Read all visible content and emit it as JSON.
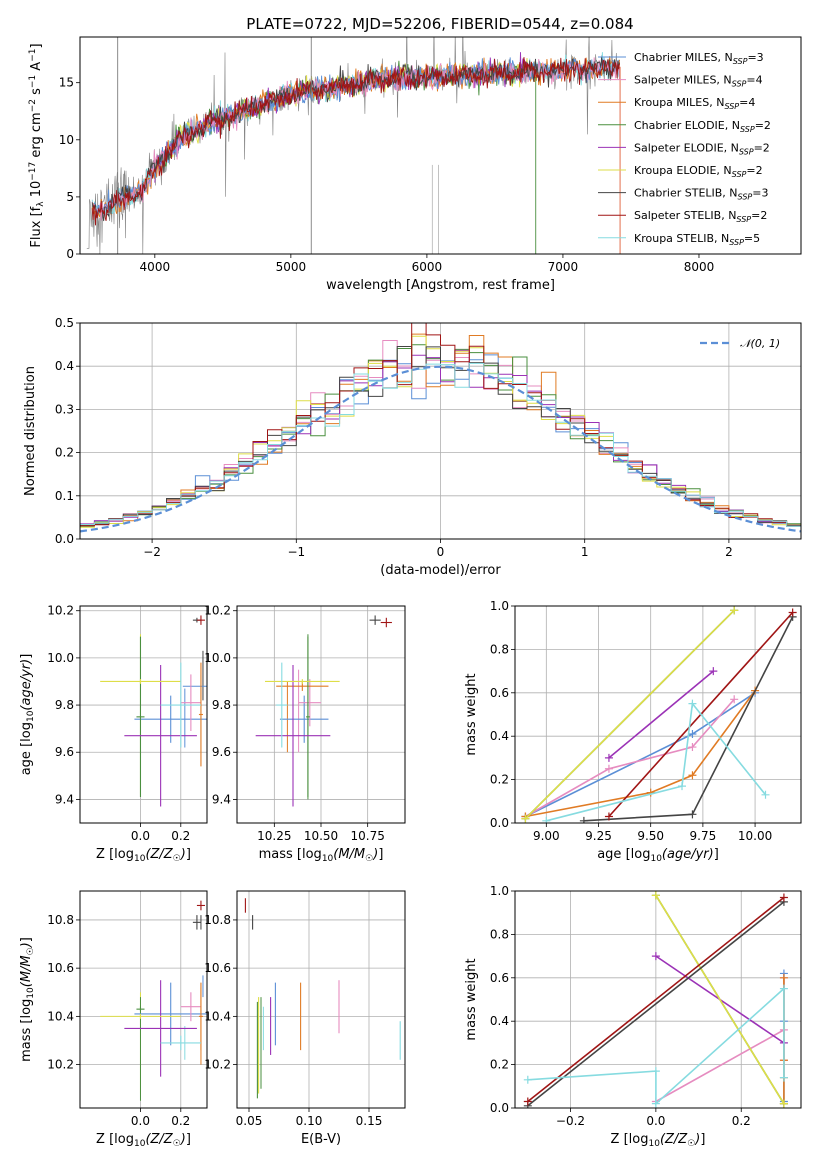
{
  "figure": {
    "title": "PLATE=0722, MJD=52206, FIBERID=0544, z=0.084"
  },
  "colors": {
    "Chabrier MILES": "#5b8fd6",
    "Salpeter MILES": "#e68cc0",
    "Kroupa MILES": "#e07b24",
    "Chabrier ELODIE": "#4a8f3f",
    "Salpeter ELODIE": "#9b32b6",
    "Kroupa ELODIE": "#dede48",
    "Chabrier STELIB": "#444444",
    "Salpeter STELIB": "#a01515",
    "Kroupa STELIB": "#86dbe0"
  },
  "chart_data": [
    {
      "id": "spectrum",
      "type": "line",
      "title": "PLATE=0722, MJD=52206, FIBERID=0544, z=0.084",
      "xlabel": "wavelength [Angstrom, rest frame]",
      "ylabel": "Flux [f_λ 10^-17 erg cm^-2 s^-1 A^-1]",
      "xlim": [
        3450,
        8750
      ],
      "ylim": [
        0,
        19
      ],
      "xticks": [
        4000,
        5000,
        6000,
        7000,
        8000
      ],
      "yticks": [
        0,
        5,
        10,
        15
      ],
      "grid": false,
      "legend_position": "upper-right",
      "legend": [
        {
          "model": "Chabrier MILES",
          "n_ssp": 3
        },
        {
          "model": "Salpeter MILES",
          "n_ssp": 4
        },
        {
          "model": "Kroupa MILES",
          "n_ssp": 4
        },
        {
          "model": "Chabrier ELODIE",
          "n_ssp": 2
        },
        {
          "model": "Salpeter ELODIE",
          "n_ssp": 2
        },
        {
          "model": "Kroupa ELODIE",
          "n_ssp": 2
        },
        {
          "model": "Chabrier STELIB",
          "n_ssp": 3
        },
        {
          "model": "Salpeter STELIB",
          "n_ssp": 2
        },
        {
          "model": "Kroupa STELIB",
          "n_ssp": 5
        }
      ],
      "continuum": {
        "x": [
          3500,
          3600,
          3700,
          3800,
          3900,
          4000,
          4100,
          4200,
          4400,
          4600,
          4800,
          5000,
          5200,
          5400,
          5600,
          5800,
          6000,
          6200,
          6400,
          6600,
          6800,
          7000,
          7200,
          7400
        ],
        "y": [
          4.2,
          3.8,
          4.5,
          5.0,
          5.6,
          7.5,
          9.0,
          10.2,
          11.4,
          12.3,
          13.2,
          14.0,
          14.4,
          14.7,
          15.2,
          15.4,
          15.5,
          15.6,
          15.7,
          15.9,
          16.0,
          16.2,
          16.2,
          16.4
        ]
      },
      "vertical_lines": [
        {
          "x": 3727,
          "y0": 0,
          "y1": 19,
          "color": "#7f7f7f"
        },
        {
          "x": 5150,
          "y0": 0,
          "y1": 19,
          "color": "#7f7f7f"
        },
        {
          "x": 6040,
          "y0": 0,
          "y1": 7.8,
          "color": "#bbbbbb"
        },
        {
          "x": 6085,
          "y0": 0,
          "y1": 7.8,
          "color": "#bbbbbb"
        },
        {
          "x": 6800,
          "y0": 0,
          "y1": 15.5,
          "color": "#4a8f3f"
        },
        {
          "x": 7420,
          "y0": 0,
          "y1": 16.4,
          "color": "#e0603a"
        }
      ]
    },
    {
      "id": "residuals",
      "type": "step",
      "xlabel": "(data-model)/error",
      "ylabel": "Normed distribution",
      "xlim": [
        -2.5,
        2.5
      ],
      "ylim": [
        0,
        0.5
      ],
      "xticks": [
        -2,
        -1,
        0,
        1,
        2
      ],
      "yticks": [
        0.0,
        0.1,
        0.2,
        0.3,
        0.4,
        0.5
      ],
      "grid": true,
      "legend_position": "upper-right",
      "reference_curve": {
        "label": "𝒩(0, 1)",
        "mean": 0,
        "sigma": 1,
        "color": "#5b8fd6",
        "style": "dashed"
      },
      "bin_width": 0.1
    },
    {
      "id": "age_vs_Z",
      "type": "errorbar",
      "xlabel": "Z [log10(Z/Z☉)]",
      "ylabel": "age [log10(age/yr)]",
      "xlim": [
        -0.3,
        0.33
      ],
      "ylim": [
        9.3,
        10.22
      ],
      "xticks": [
        0.0,
        0.2
      ],
      "yticks": [
        9.4,
        9.6,
        9.8,
        10.0,
        10.2
      ],
      "grid": true,
      "points": [
        {
          "model": "Chabrier MILES",
          "x": 0.15,
          "xerr": 0.18,
          "y": 9.74,
          "yerr": 0.1
        },
        {
          "model": "Salpeter MILES",
          "x": 0.25,
          "xerr": 0.05,
          "y": 9.81,
          "yerr": 0.12
        },
        {
          "model": "Kroupa MILES",
          "x": 0.3,
          "xerr": 0.01,
          "y": 9.76,
          "yerr": 0.22
        },
        {
          "model": "Chabrier ELODIE",
          "x": 0.0,
          "xerr": 0.02,
          "y": 9.75,
          "yerr": 0.34
        },
        {
          "model": "Salpeter ELODIE",
          "x": 0.1,
          "xerr": 0.18,
          "y": 9.67,
          "yerr": 0.3
        },
        {
          "model": "Kroupa ELODIE",
          "x": 0.0,
          "xerr": 0.2,
          "y": 9.9,
          "yerr": 0.01
        },
        {
          "model": "Chabrier STELIB",
          "x": 0.28,
          "xerr": 0.02,
          "y": 10.16,
          "yerr": 0.01
        },
        {
          "model": "Salpeter STELIB",
          "x": 0.3,
          "xerr": 0.02,
          "y": 10.16,
          "yerr": 0.02
        },
        {
          "model": "Kroupa STELIB",
          "x": 0.2,
          "xerr": 0.1,
          "y": 9.8,
          "yerr": 0.18
        }
      ],
      "extra_bars": [
        {
          "model": "Kroupa ELODIE",
          "x": 0.0,
          "y0": 9.42,
          "y1": 10.1
        },
        {
          "model": "Chabrier MILES",
          "x": 0.22,
          "y0": 9.62,
          "y1": 9.87
        },
        {
          "model": "Chabrier STELIB",
          "x": 0.31,
          "y0": 9.82,
          "y1": 10.03
        },
        {
          "model": "Chabrier MILES",
          "x": 0.27,
          "xerr": 0.06,
          "y": 9.88
        },
        {
          "model": "Kroupa STELIB",
          "x": 0.3,
          "y0": 9.6,
          "y1": 9.93
        }
      ]
    },
    {
      "id": "age_vs_mass",
      "type": "errorbar",
      "xlabel": "mass [log10(M/M☉)]",
      "xlim": [
        10.05,
        10.95
      ],
      "ylim": [
        9.3,
        10.22
      ],
      "xticks": [
        10.25,
        10.5,
        10.75
      ],
      "yticks": [
        9.4,
        9.6,
        9.8,
        10.0,
        10.2
      ],
      "grid": true,
      "points": [
        {
          "model": "Chabrier MILES",
          "x": 10.41,
          "xerr": 0.13,
          "y": 9.74,
          "yerr": 0.1
        },
        {
          "model": "Salpeter MILES",
          "x": 10.44,
          "xerr": 0.06,
          "y": 9.81,
          "yerr": 0.1
        },
        {
          "model": "Kroupa MILES",
          "x": 10.4,
          "xerr": 0.14,
          "y": 9.88,
          "yerr": 0.02
        },
        {
          "model": "Chabrier ELODIE",
          "x": 10.43,
          "xerr": 0.01,
          "y": 9.75,
          "yerr": 0.34
        },
        {
          "model": "Salpeter ELODIE",
          "x": 10.35,
          "xerr": 0.2,
          "y": 9.67,
          "yerr": 0.3
        },
        {
          "model": "Kroupa ELODIE",
          "x": 10.4,
          "xerr": 0.2,
          "y": 9.9,
          "yerr": 0.01
        },
        {
          "model": "Chabrier STELIB",
          "x": 10.79,
          "xerr": 0.03,
          "y": 10.16,
          "yerr": 0.02
        },
        {
          "model": "Salpeter STELIB",
          "x": 10.85,
          "xerr": 0.03,
          "y": 10.15,
          "yerr": 0.02
        },
        {
          "model": "Kroupa STELIB",
          "x": 10.29,
          "xerr": 0.03,
          "y": 9.8,
          "yerr": 0.18
        }
      ],
      "extra_bars": [
        {
          "model": "Salpeter MILES",
          "x": 10.38,
          "y0": 9.6,
          "y1": 9.95
        },
        {
          "model": "Chabrier ELODIE",
          "x": 10.43,
          "y0": 9.4,
          "y1": 10.1
        },
        {
          "model": "Kroupa MILES",
          "x": 10.32,
          "y0": 9.6,
          "y1": 9.9
        }
      ]
    },
    {
      "id": "weight_vs_age",
      "type": "line",
      "xlabel": "age [log10(age/yr)]",
      "ylabel": "mass weight",
      "xlim": [
        8.85,
        10.22
      ],
      "ylim": [
        0,
        1
      ],
      "xticks": [
        9.0,
        9.25,
        9.5,
        9.75,
        10.0
      ],
      "yticks": [
        0.0,
        0.2,
        0.4,
        0.6,
        0.8,
        1.0
      ],
      "grid": true,
      "series": [
        {
          "model": "Chabrier MILES",
          "x": [
            8.9,
            9.7,
            10.0
          ],
          "y": [
            0.03,
            0.41,
            0.6
          ]
        },
        {
          "model": "Salpeter MILES",
          "x": [
            8.9,
            9.3,
            9.7,
            9.9
          ],
          "y": [
            0.03,
            0.25,
            0.35,
            0.57
          ]
        },
        {
          "model": "Kroupa MILES",
          "x": [
            8.9,
            9.5,
            9.7,
            10.0
          ],
          "y": [
            0.03,
            0.14,
            0.22,
            0.61
          ]
        },
        {
          "model": "Chabrier ELODIE",
          "x": [
            8.9,
            9.9
          ],
          "y": [
            0.02,
            0.98
          ]
        },
        {
          "model": "Salpeter ELODIE",
          "x": [
            9.3,
            9.8
          ],
          "y": [
            0.3,
            0.7
          ]
        },
        {
          "model": "Kroupa ELODIE",
          "x": [
            8.9,
            9.9
          ],
          "y": [
            0.02,
            0.98
          ]
        },
        {
          "model": "Chabrier STELIB",
          "x": [
            9.18,
            9.7,
            10.18
          ],
          "y": [
            0.01,
            0.04,
            0.95
          ]
        },
        {
          "model": "Salpeter STELIB",
          "x": [
            9.3,
            10.18
          ],
          "y": [
            0.03,
            0.97
          ]
        },
        {
          "model": "Kroupa STELIB",
          "x": [
            9.0,
            9.65,
            9.7,
            10.05
          ],
          "y": [
            0.01,
            0.17,
            0.55,
            0.13
          ]
        }
      ]
    },
    {
      "id": "mass_vs_Z",
      "type": "errorbar",
      "xlabel": "Z [log10(Z/Z☉)]",
      "ylabel": "mass [log10(M/M☉)]",
      "xlim": [
        -0.3,
        0.33
      ],
      "ylim": [
        10.02,
        10.92
      ],
      "xticks": [
        0.0,
        0.2
      ],
      "yticks": [
        10.2,
        10.4,
        10.6,
        10.8
      ],
      "grid": true,
      "points": [
        {
          "model": "Chabrier MILES",
          "x": 0.15,
          "xerr": 0.18,
          "y": 10.41,
          "yerr": 0.13
        },
        {
          "model": "Salpeter MILES",
          "x": 0.25,
          "xerr": 0.05,
          "y": 10.44,
          "yerr": 0.06
        },
        {
          "model": "Kroupa MILES",
          "x": 0.3,
          "xerr": 0.01,
          "y": 10.4,
          "yerr": 0.14
        },
        {
          "model": "Chabrier ELODIE",
          "x": 0.0,
          "xerr": 0.02,
          "y": 10.43,
          "yerr": 0.01
        },
        {
          "model": "Salpeter ELODIE",
          "x": 0.1,
          "xerr": 0.18,
          "y": 10.35,
          "yerr": 0.2
        },
        {
          "model": "Kroupa ELODIE",
          "x": 0.0,
          "xerr": 0.2,
          "y": 10.4,
          "yerr": 0.01
        },
        {
          "model": "Chabrier STELIB",
          "x": 0.28,
          "xerr": 0.02,
          "y": 10.79,
          "yerr": 0.03
        },
        {
          "model": "Salpeter STELIB",
          "x": 0.3,
          "xerr": 0.02,
          "y": 10.86,
          "yerr": 0.02
        },
        {
          "model": "Kroupa STELIB",
          "x": 0.2,
          "xerr": 0.1,
          "y": 10.29,
          "yerr": 0.03
        }
      ],
      "extra_bars": [
        {
          "model": "Kroupa ELODIE",
          "x": 0.0,
          "y0": 10.08,
          "y1": 10.5
        },
        {
          "model": "Chabrier ELODIE",
          "x": 0.0,
          "y0": 10.05,
          "y1": 10.48
        },
        {
          "model": "Kroupa STELIB",
          "x": 0.22,
          "y0": 10.22,
          "y1": 10.36
        },
        {
          "model": "Kroupa MILES",
          "x": 0.3,
          "y0": 10.2,
          "y1": 10.52
        },
        {
          "model": "Chabrier STELIB",
          "x": 0.3,
          "y0": 10.76,
          "y1": 10.82
        },
        {
          "model": "Chabrier MILES",
          "x": 0.31,
          "y0": 10.48,
          "y1": 10.57
        }
      ]
    },
    {
      "id": "mass_vs_EBV",
      "type": "errorbar",
      "xlabel": "E(B-V)",
      "xlim": [
        0.04,
        0.18
      ],
      "ylim": [
        10.02,
        10.92
      ],
      "xticks": [
        0.05,
        0.1,
        0.15
      ],
      "yticks": [
        10.2,
        10.4,
        10.6,
        10.8
      ],
      "grid": true,
      "points": [
        {
          "model": "Chabrier MILES",
          "x": 0.072,
          "y": 10.41,
          "yerr": 0.13
        },
        {
          "model": "Salpeter MILES",
          "x": 0.125,
          "y": 10.44,
          "yerr": 0.11
        },
        {
          "model": "Kroupa MILES",
          "x": 0.093,
          "y": 10.4,
          "yerr": 0.14
        },
        {
          "model": "Chabrier ELODIE",
          "x": 0.057,
          "y": 10.26,
          "yerr": 0.2
        },
        {
          "model": "Salpeter ELODIE",
          "x": 0.068,
          "y": 10.36,
          "yerr": 0.12
        },
        {
          "model": "Kroupa ELODIE",
          "x": 0.058,
          "y": 10.28,
          "yerr": 0.2
        },
        {
          "model": "Chabrier STELIB",
          "x": 0.053,
          "y": 10.79,
          "yerr": 0.03
        },
        {
          "model": "Salpeter STELIB",
          "x": 0.047,
          "y": 10.86,
          "yerr": 0.03
        },
        {
          "model": "Kroupa STELIB",
          "x": 0.176,
          "y": 10.3,
          "yerr": 0.08
        }
      ],
      "extra_bars": [
        {
          "model": "Chabrier ELODIE",
          "x": 0.06,
          "y0": 10.1,
          "y1": 10.48
        },
        {
          "model": "Kroupa STELIB",
          "x": 0.062,
          "y0": 10.26,
          "y1": 10.44
        }
      ]
    },
    {
      "id": "weight_vs_Z",
      "type": "line",
      "xlabel": "Z [log10(Z/Z☉)]",
      "ylabel": "mass weight",
      "xlim": [
        -0.33,
        0.34
      ],
      "ylim": [
        0,
        1
      ],
      "xticks": [
        -0.2,
        0.0,
        0.2
      ],
      "yticks": [
        0.0,
        0.2,
        0.4,
        0.6,
        0.8,
        1.0
      ],
      "grid": true,
      "series": [
        {
          "model": "Chabrier MILES",
          "x": [
            0.3,
            0.3,
            0.3
          ],
          "y": [
            0.03,
            0.4,
            0.62
          ]
        },
        {
          "model": "Salpeter MILES",
          "x": [
            0.0,
            0.3,
            0.3,
            0.3
          ],
          "y": [
            0.03,
            0.36,
            0.22,
            0.6
          ]
        },
        {
          "model": "Kroupa MILES",
          "x": [
            0.3,
            0.3,
            0.3,
            0.3
          ],
          "y": [
            0.02,
            0.14,
            0.22,
            0.6
          ]
        },
        {
          "model": "Chabrier ELODIE",
          "x": [
            0.0,
            0.3
          ],
          "y": [
            0.98,
            0.02
          ]
        },
        {
          "model": "Salpeter ELODIE",
          "x": [
            0.0,
            0.3
          ],
          "y": [
            0.7,
            0.3
          ]
        },
        {
          "model": "Kroupa ELODIE",
          "x": [
            0.0,
            0.3
          ],
          "y": [
            0.98,
            0.02
          ]
        },
        {
          "model": "Chabrier STELIB",
          "x": [
            -0.3,
            0.3
          ],
          "y": [
            0.01,
            0.95
          ]
        },
        {
          "model": "Salpeter STELIB",
          "x": [
            -0.3,
            0.3
          ],
          "y": [
            0.03,
            0.97
          ]
        },
        {
          "model": "Kroupa STELIB",
          "x": [
            -0.3,
            0.0,
            0.0,
            0.3,
            0.3
          ],
          "y": [
            0.13,
            0.17,
            0.02,
            0.55,
            0.14
          ]
        }
      ]
    }
  ]
}
